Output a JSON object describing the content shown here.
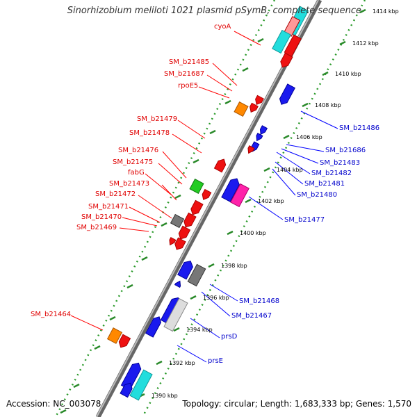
{
  "title": "Sinorhizobium meliloti 1021 plasmid pSymB, complete sequence",
  "footer": {
    "accession": "Accession: NC_003078",
    "summary": "Topology: circular; Length: 1,683,333 bp; Genes: 1,570"
  },
  "colors": {
    "red_label": "#e00000",
    "blue_label": "#0000cc",
    "backbone": "#888888",
    "tick_dots": "#2a9a2a"
  },
  "ticks": [
    "1414 kbp",
    "1412 kbp",
    "1410 kbp",
    "1408 kbp",
    "1406 kbp",
    "1404 kbp",
    "1402 kbp",
    "1400 kbp",
    "1398 kbp",
    "1396 kbp",
    "1394 kbp",
    "1392 kbp",
    "1390 kbp"
  ],
  "labels_left": [
    "cyoA",
    "SM_b21485",
    "SM_b21687",
    "rpoE5",
    "SM_b21479",
    "SM_b21478",
    "SM_b21476",
    "SM_b21475",
    "fabG",
    "SM_b21473",
    "SM_b21472",
    "SM_b21471",
    "SM_b21470",
    "SM_b21469",
    "SM_b21464"
  ],
  "labels_right": [
    "SM_b21486",
    "SM_b21686",
    "SM_b21483",
    "SM_b21482",
    "SM_b21481",
    "SM_b21480",
    "SM_b21477",
    "SM_b21468",
    "SM_b21467",
    "prsD",
    "prsE"
  ]
}
